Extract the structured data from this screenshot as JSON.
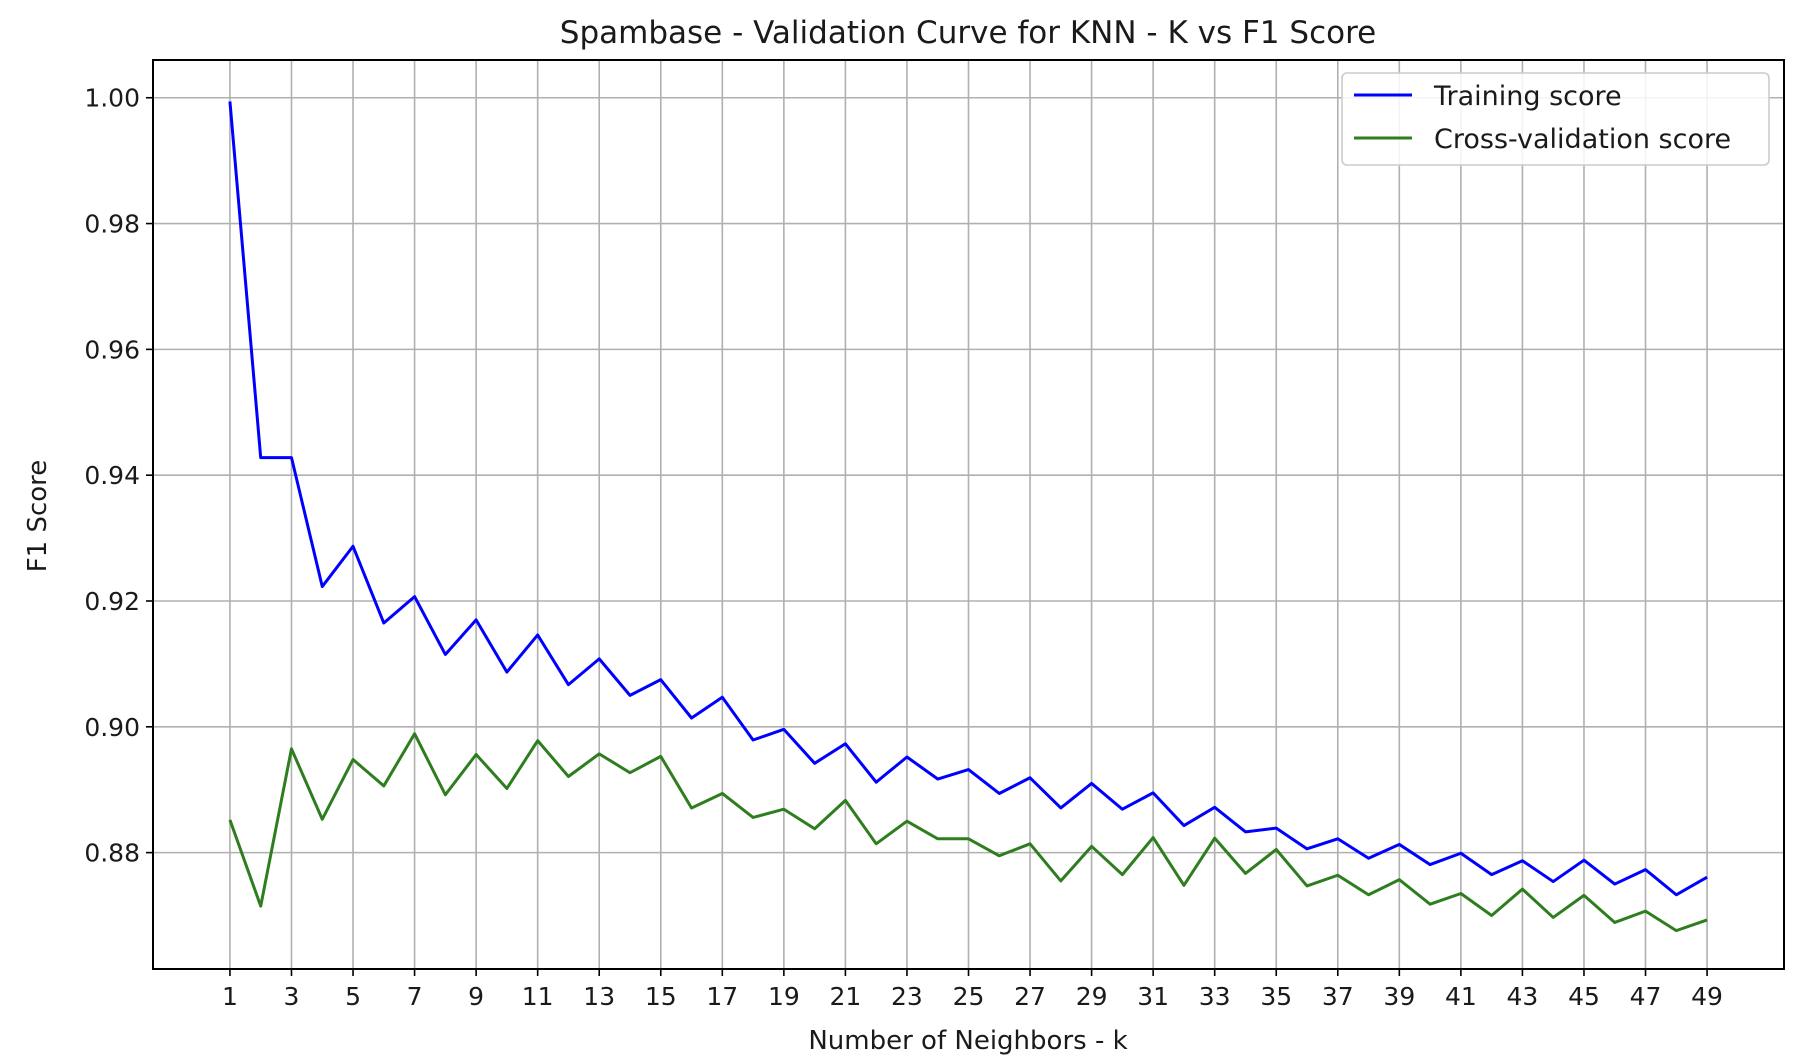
{
  "chart_data": {
    "type": "line",
    "title": "Spambase - Validation Curve for KNN - K vs F1 Score",
    "xlabel": "Number of Neighbors - k",
    "ylabel": "F1 Score",
    "xlim": [
      -1.5,
      51.5
    ],
    "ylim": [
      0.8615,
      1.006
    ],
    "xticks": [
      1,
      3,
      5,
      7,
      9,
      11,
      13,
      15,
      17,
      19,
      21,
      23,
      25,
      27,
      29,
      31,
      33,
      35,
      37,
      39,
      41,
      43,
      45,
      47,
      49
    ],
    "xtick_labels": [
      "1",
      "3",
      "5",
      "7",
      "9",
      "11",
      "13",
      "15",
      "17",
      "19",
      "21",
      "23",
      "25",
      "27",
      "29",
      "31",
      "33",
      "35",
      "37",
      "39",
      "41",
      "43",
      "45",
      "47",
      "49"
    ],
    "yticks": [
      0.88,
      0.9,
      0.92,
      0.94,
      0.96,
      0.98,
      1.0
    ],
    "ytick_labels": [
      "0.88",
      "0.90",
      "0.92",
      "0.94",
      "0.96",
      "0.98",
      "1.00"
    ],
    "grid": true,
    "legend": {
      "placement": "top-right"
    },
    "x": [
      1,
      2,
      3,
      4,
      5,
      6,
      7,
      8,
      9,
      10,
      11,
      12,
      13,
      14,
      15,
      16,
      17,
      18,
      19,
      20,
      21,
      22,
      23,
      24,
      25,
      26,
      27,
      28,
      29,
      30,
      31,
      32,
      33,
      34,
      35,
      36,
      37,
      38,
      39,
      40,
      41,
      42,
      43,
      44,
      45,
      46,
      47,
      48,
      49
    ],
    "series": [
      {
        "name": "Training score",
        "color": "#0000ff",
        "values": [
          0.9994,
          0.9428,
          0.9428,
          0.9223,
          0.9287,
          0.9165,
          0.9207,
          0.9115,
          0.917,
          0.9087,
          0.9146,
          0.9067,
          0.9108,
          0.905,
          0.9075,
          0.9014,
          0.9047,
          0.8979,
          0.8996,
          0.8942,
          0.8973,
          0.8912,
          0.8952,
          0.8917,
          0.8932,
          0.8894,
          0.8919,
          0.8871,
          0.891,
          0.8869,
          0.8895,
          0.8843,
          0.8872,
          0.8833,
          0.8839,
          0.8806,
          0.8822,
          0.8791,
          0.8813,
          0.8781,
          0.8799,
          0.8765,
          0.8787,
          0.8754,
          0.8788,
          0.875,
          0.8773,
          0.8733,
          0.8761
        ]
      },
      {
        "name": "Cross-validation score",
        "color": "#2e7d1f",
        "values": [
          0.8852,
          0.8715,
          0.8965,
          0.8853,
          0.8948,
          0.8906,
          0.8989,
          0.8892,
          0.8956,
          0.8902,
          0.8978,
          0.8921,
          0.8957,
          0.8927,
          0.8953,
          0.8871,
          0.8894,
          0.8856,
          0.8869,
          0.8838,
          0.8883,
          0.8814,
          0.885,
          0.8822,
          0.8822,
          0.8795,
          0.8814,
          0.8755,
          0.881,
          0.8765,
          0.8824,
          0.8748,
          0.8823,
          0.8767,
          0.8805,
          0.8747,
          0.8764,
          0.8733,
          0.8757,
          0.8718,
          0.8735,
          0.87,
          0.8742,
          0.8697,
          0.8732,
          0.8689,
          0.8707,
          0.8676,
          0.8693
        ]
      }
    ]
  }
}
